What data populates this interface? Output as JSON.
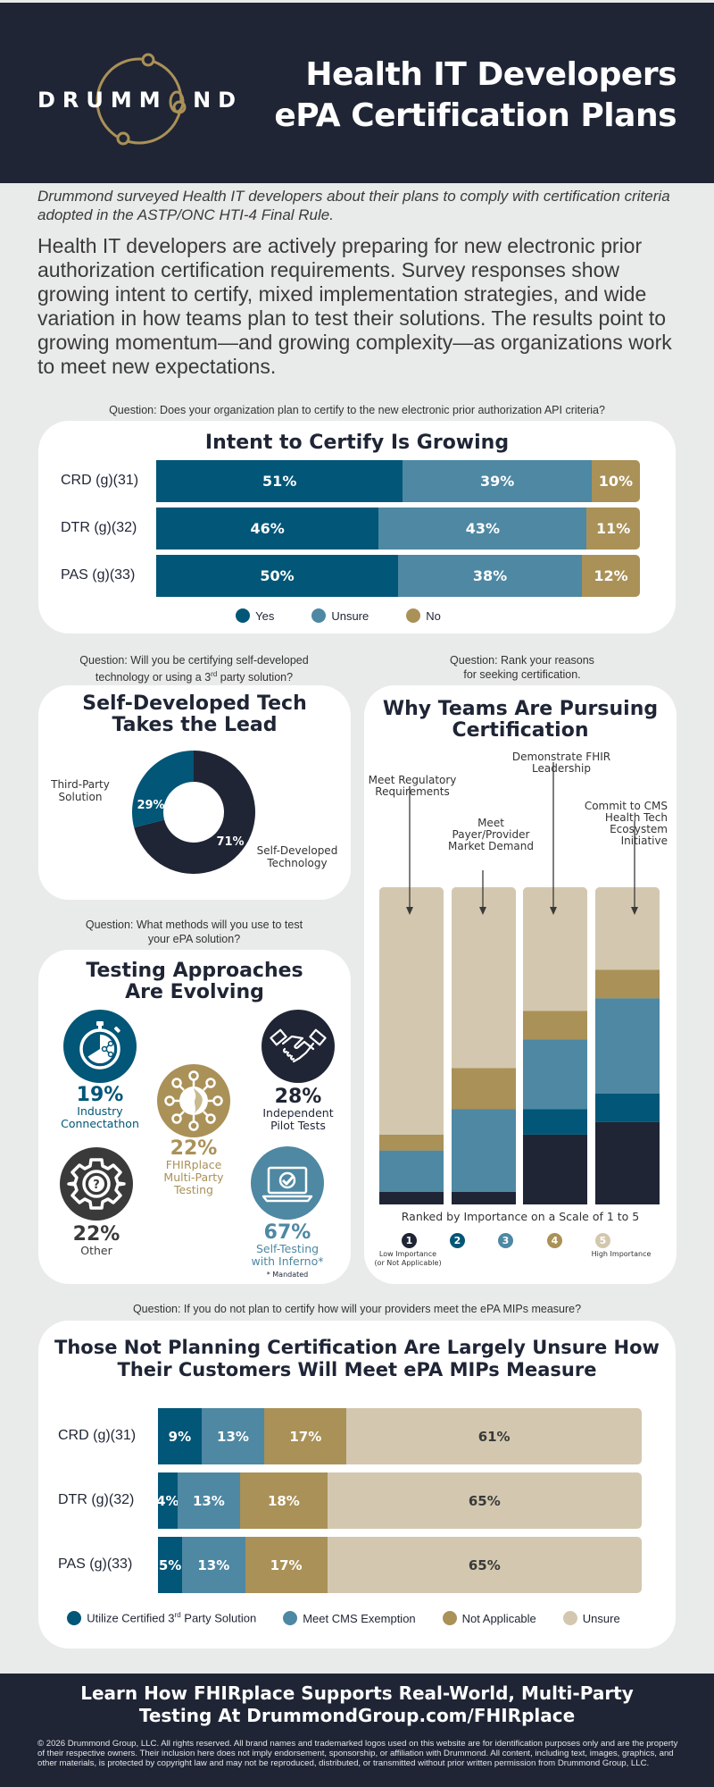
{
  "header": {
    "logo_text_left": "DRUMM",
    "logo_text_o": "O",
    "logo_text_right": "ND",
    "title_line1": "Health IT Developers",
    "title_line2": "ePA Certification Plans"
  },
  "intro": {
    "italic": "Drummond surveyed Health IT developers about their plans to comply with certification criteria adopted in the ASTP/ONC HTI-4 Final Rule.",
    "body": "Health IT developers are actively preparing for new electronic prior authorization certification requirements. Survey responses show growing intent to certify, mixed implementation strategies, and wide variation in how teams plan to test their solutions. The results point to growing momentum—and growing complexity—as organizations work to meet new expectations."
  },
  "colors": {
    "navy": "#1f2535",
    "teal_dark": "#025677",
    "teal_light": "#4e88a3",
    "gold": "#aa9157",
    "sand": "#d3c8af",
    "charcoal": "#3a3a3a",
    "bg": "#e9eaea"
  },
  "sections": {
    "intent": {
      "question": "Question: Does your organization plan to certify to the new electronic prior authorization API criteria?"
    },
    "self_dev": {
      "question_line1": "Question: Will you be certifying self-developed",
      "question_line2_pre": "technology or using a 3",
      "question_line2_sup": "rd",
      "question_line2_post": " party solution?"
    },
    "reasons": {
      "question_line1": "Question: Rank your reasons",
      "question_line2": "for seeking certification."
    },
    "testing": {
      "question_line1": "Question: What methods will you use to test",
      "question_line2": "your ePA solution?",
      "title_line1": "Testing Approaches",
      "title_line2": "Are Evolving",
      "items": [
        {
          "pct": "19%",
          "label_line1": "Industry",
          "label_line2": "Connectathon",
          "icon": "stopwatch-icon"
        },
        {
          "pct": "22%",
          "label_line1": "FHIRplace",
          "label_line2": "Multi-Party",
          "label_line3": "Testing",
          "icon": "globe-network-icon"
        },
        {
          "pct": "28%",
          "label_line1": "Independent",
          "label_line2": "Pilot Tests",
          "icon": "handshake-icon"
        },
        {
          "pct": "22%",
          "label_line1": "Other",
          "icon": "gear-question-icon"
        },
        {
          "pct": "67%",
          "label_line1": "Self-Testing",
          "label_line2": "with Inferno*",
          "icon": "laptop-check-icon"
        }
      ],
      "footnote": "* Mandated"
    },
    "mips": {
      "question": "Question: If you do not plan to certify how will your providers meet the ePA MIPs measure?"
    }
  },
  "footer": {
    "cta_line1": "Learn How FHIRplace Supports Real-World, Multi-Party",
    "cta_line2": "Testing At DrummondGroup.com/FHIRplace",
    "legal": "© 2026 Drummond Group, LLC. All rights reserved. All brand names and trademarked logos used on this website are for identification purposes only and are the property of their respective owners. Their inclusion here does not imply endorsement, sponsorship, or affiliation with Drummond. All content, including text, images, graphics, and other materials, is protected by copyright law and may not be reproduced, distributed, or transmitted without prior written permission from Drummond Group, LLC."
  },
  "chart_data": [
    {
      "type": "bar",
      "orientation": "horizontal",
      "stacked": true,
      "title": "Intent to Certify Is Growing",
      "categories": [
        "CRD (g)(31)",
        "DTR (g)(32)",
        "PAS (g)(33)"
      ],
      "series": [
        {
          "name": "Yes",
          "color": "#025677",
          "values": [
            51,
            46,
            50
          ]
        },
        {
          "name": "Unsure",
          "color": "#4e88a3",
          "values": [
            39,
            43,
            38
          ]
        },
        {
          "name": "No",
          "color": "#aa9157",
          "values": [
            10,
            11,
            12
          ]
        }
      ],
      "value_suffix": "%",
      "xlim": [
        0,
        100
      ],
      "legend": "bottom"
    },
    {
      "type": "pie",
      "donut": true,
      "title_line1": "Self-Developed Tech",
      "title_line2": "Takes the Lead",
      "slices": [
        {
          "name_line1": "Self-Developed",
          "name_line2": "Technology",
          "value": 71,
          "color": "#1f2535"
        },
        {
          "name_line1": "Third-Party",
          "name_line2": "Solution",
          "value": 29,
          "color": "#025677"
        }
      ],
      "value_suffix": "%"
    },
    {
      "type": "bar",
      "orientation": "vertical",
      "stacked": true,
      "title_line1": "Why Teams Are Pursuing",
      "title_line2": "Certification",
      "categories": [
        [
          "Meet Regulatory",
          "Requirements"
        ],
        [
          "Meet",
          "Payer/Provider",
          "Market Demand"
        ],
        [
          "Demonstrate FHIR",
          "Leadership"
        ],
        [
          "Commit to CMS",
          "Health Tech",
          "Ecosystem",
          "Initiative"
        ]
      ],
      "series": [
        {
          "name": "1",
          "color": "#1f2535",
          "values": [
            4,
            4,
            22,
            26
          ]
        },
        {
          "name": "2",
          "color": "#025677",
          "values": [
            0,
            0,
            8,
            9
          ]
        },
        {
          "name": "3",
          "color": "#4e88a3",
          "values": [
            13,
            26,
            22,
            30
          ]
        },
        {
          "name": "4",
          "color": "#aa9157",
          "values": [
            5,
            13,
            9,
            9
          ]
        },
        {
          "name": "5",
          "color": "#d3c8af",
          "values": [
            78,
            57,
            39,
            26
          ]
        }
      ],
      "ylim": [
        0,
        100
      ],
      "xlabel": "Ranked by Importance on a Scale of 1 to 5",
      "scale_low_line1": "Low Importance",
      "scale_low_line2": "(or Not Applicable)",
      "scale_high": "High Importance",
      "legend": "bottom"
    },
    {
      "type": "bar",
      "orientation": "horizontal",
      "stacked": true,
      "title_line1": "Those Not Planning Certification Are Largely Unsure How",
      "title_line2": "Their Customers Will Meet ePA MIPs Measure",
      "categories": [
        "CRD (g)(31)",
        "DTR (g)(32)",
        "PAS (g)(33)"
      ],
      "series": [
        {
          "name": "Utilize Certified 3rd Party Solution",
          "name_pre": "Utilize Certified 3",
          "name_sup": "rd",
          "name_post": " Party Solution",
          "color": "#025677",
          "values": [
            9,
            4,
            5
          ]
        },
        {
          "name": "Meet CMS Exemption",
          "color": "#4e88a3",
          "values": [
            13,
            13,
            13
          ]
        },
        {
          "name": "Not Applicable",
          "color": "#aa9157",
          "values": [
            17,
            18,
            17
          ]
        },
        {
          "name": "Unsure",
          "color": "#d3c8af",
          "values": [
            61,
            65,
            65
          ]
        }
      ],
      "value_suffix": "%",
      "xlim": [
        0,
        100
      ],
      "legend": "bottom"
    }
  ]
}
